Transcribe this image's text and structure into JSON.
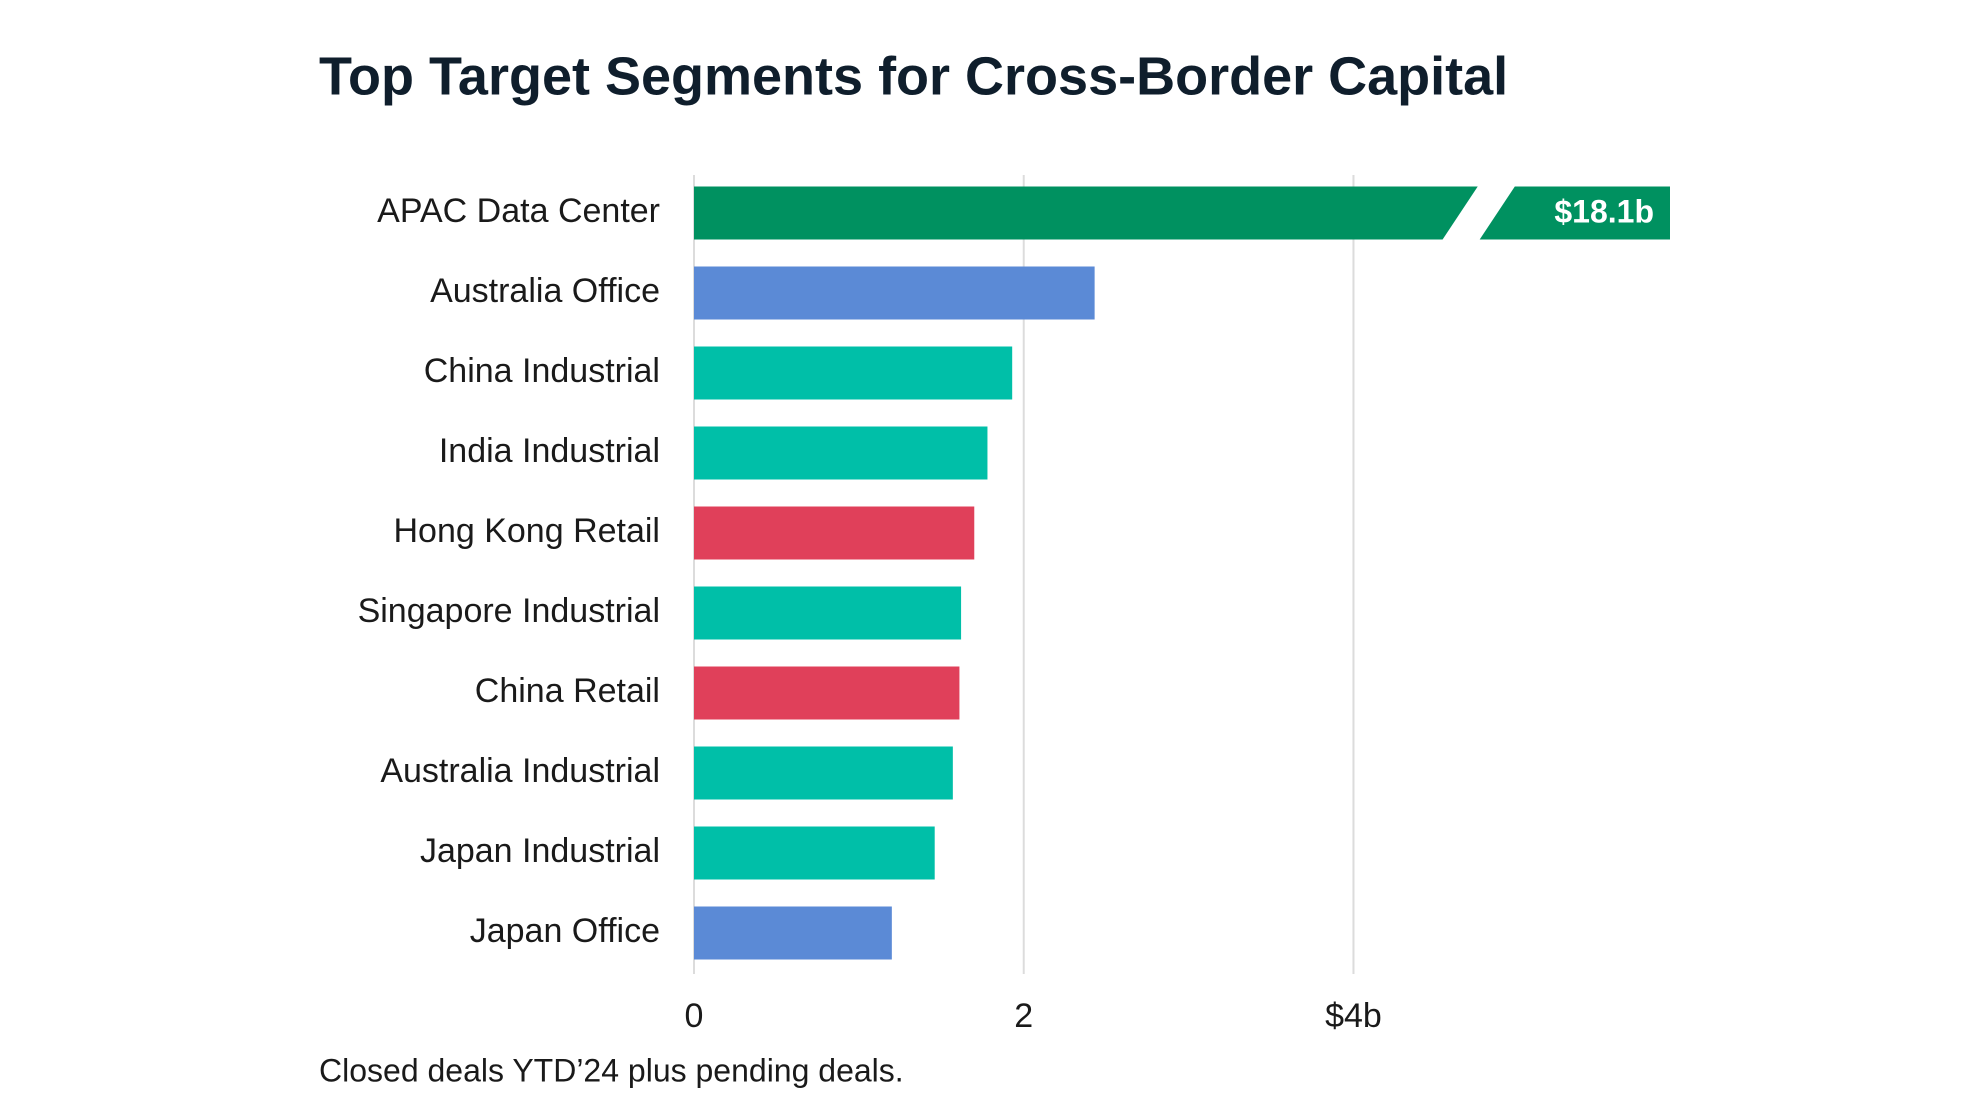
{
  "chart_data": {
    "type": "bar",
    "orientation": "horizontal",
    "title": "Top Target Segments for Cross-Border Capital",
    "categories": [
      "APAC Data Center",
      "Australia Office",
      "China Industrial",
      "India Industrial",
      "Hong Kong Retail",
      "Singapore Industrial",
      "China Retail",
      "Australia Industrial",
      "Japan Industrial",
      "Japan Office"
    ],
    "values": [
      18.1,
      2.43,
      1.93,
      1.78,
      1.7,
      1.62,
      1.61,
      1.57,
      1.46,
      1.2
    ],
    "value_labels": [
      "$18.1b",
      null,
      null,
      null,
      null,
      null,
      null,
      null,
      null,
      null
    ],
    "colors": [
      "#009160",
      "#5b8ad6",
      "#00bfa8",
      "#00bfa8",
      "#e0405a",
      "#00bfa8",
      "#e0405a",
      "#00bfa8",
      "#00bfa8",
      "#5b8ad6"
    ],
    "xlim": [
      0,
      5.92
    ],
    "xticks": [
      0,
      2,
      {
        "value": 4,
        "label": "$4b"
      }
    ],
    "grid": true,
    "note": "Closed deals YTD’24 plus pending deals."
  }
}
